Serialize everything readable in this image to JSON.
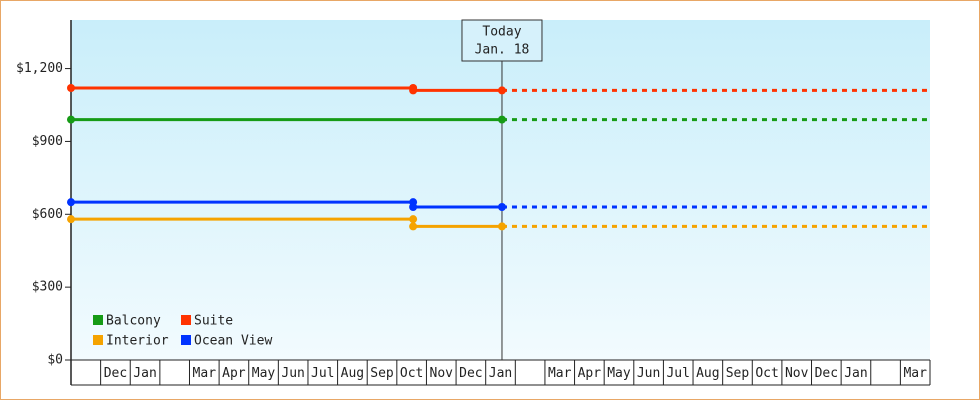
{
  "chart_data": {
    "type": "line",
    "categories": [
      null,
      "Dec",
      "Jan",
      null,
      "Mar",
      "Apr",
      "May",
      "Jun",
      "Jul",
      "Aug",
      "Sep",
      "Oct",
      "Nov",
      "Dec",
      "Jan",
      null,
      "Mar",
      "Apr",
      "May",
      "Jun",
      "Jul",
      "Aug",
      "Sep",
      "Oct",
      "Nov",
      "Dec",
      "Jan",
      null,
      "Mar"
    ],
    "xlim": [
      0,
      29
    ],
    "ylim": [
      0,
      1400
    ],
    "yticks": [
      {
        "value": 0,
        "label": "$0"
      },
      {
        "value": 300,
        "label": "$300"
      },
      {
        "value": 600,
        "label": "$600"
      },
      {
        "value": 900,
        "label": "$900"
      },
      {
        "value": 1200,
        "label": "$1,200"
      }
    ],
    "today": {
      "x": 14.55,
      "label": [
        "Today",
        "Jan. 18"
      ]
    },
    "legend": "lower-left",
    "series": [
      {
        "name": "Balcony",
        "color": "#169b16",
        "x": [
          0,
          14.55
        ],
        "values": [
          990,
          990
        ]
      },
      {
        "name": "Suite",
        "color": "#ff3300",
        "x": [
          0,
          11.55,
          11.55,
          14.55
        ],
        "values": [
          1120,
          1120,
          1110,
          1110
        ]
      },
      {
        "name": "Interior",
        "color": "#f5a300",
        "x": [
          0,
          11.55,
          11.55,
          14.55
        ],
        "values": [
          580,
          580,
          550,
          550
        ]
      },
      {
        "name": "Ocean View",
        "color": "#0033ff",
        "x": [
          0,
          11.55,
          11.55,
          14.55
        ],
        "values": [
          650,
          650,
          630,
          630
        ]
      }
    ]
  }
}
